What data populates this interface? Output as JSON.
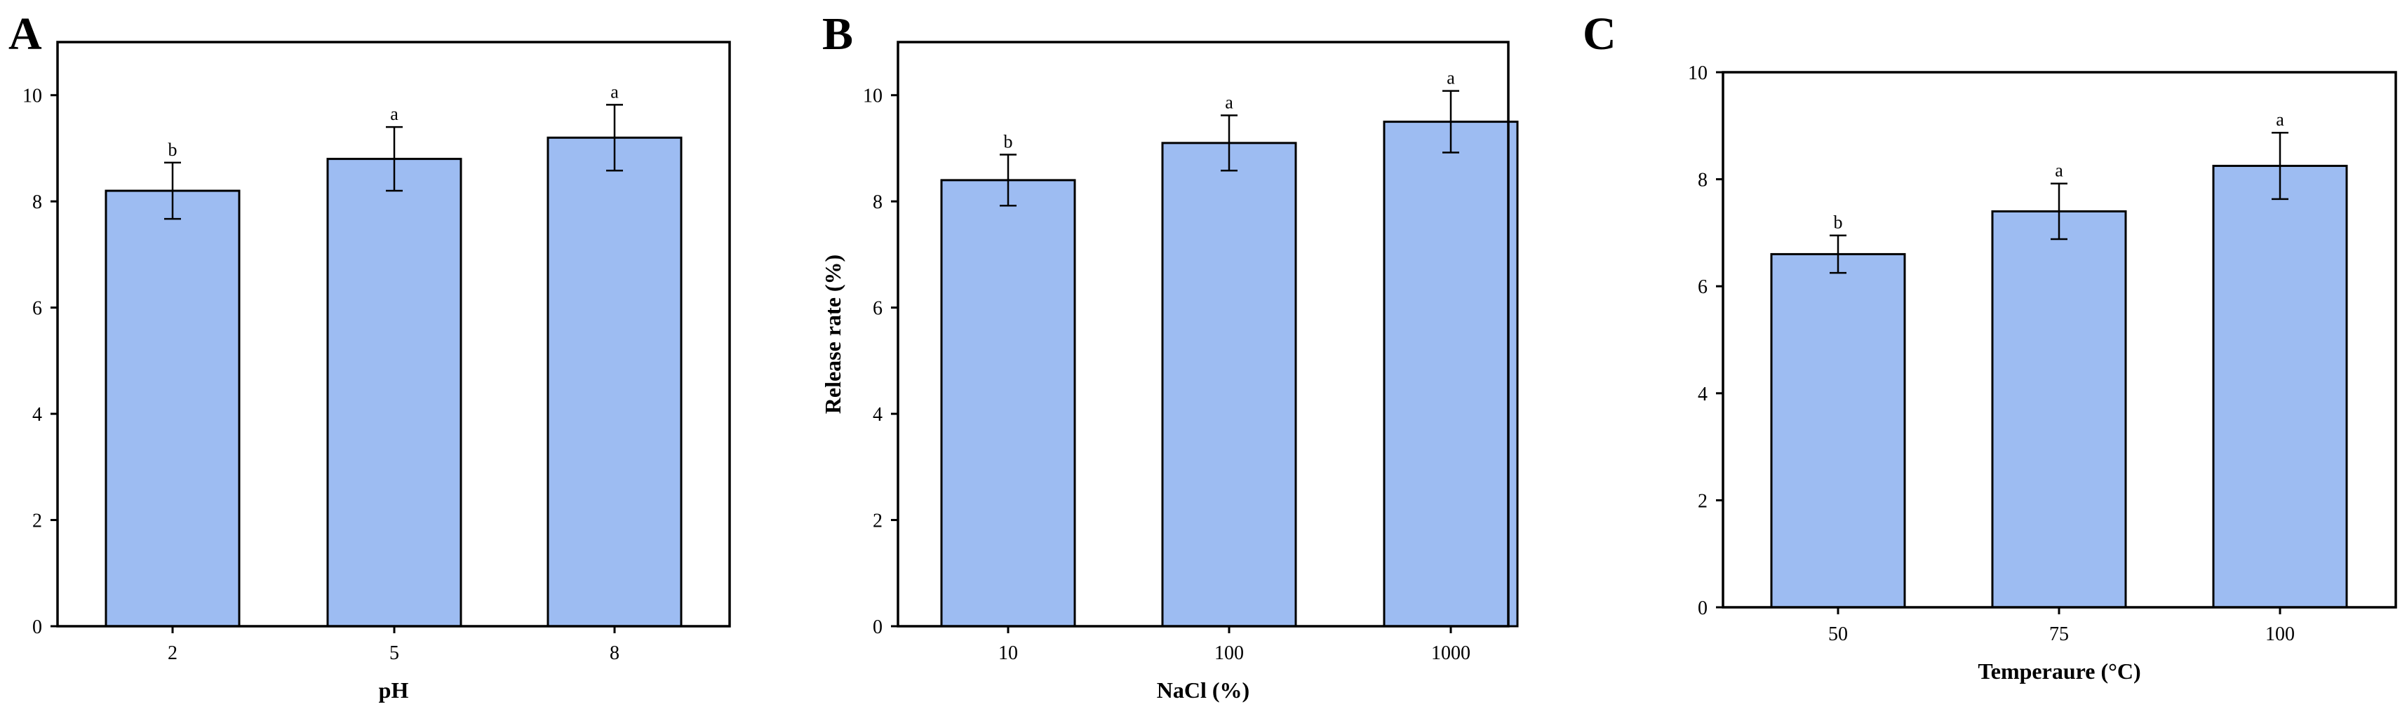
{
  "colors": {
    "bar_fill": "#9dbcf2",
    "bar_stroke": "#000000",
    "axis": "#000000",
    "background": "#ffffff"
  },
  "chart_data": [
    {
      "type": "bar",
      "panel_label": "A",
      "categories": [
        "2",
        "5",
        "8"
      ],
      "values": [
        8.2,
        8.8,
        9.2
      ],
      "errors": [
        0.53,
        0.6,
        0.62
      ],
      "significance": [
        "b",
        "a",
        "a"
      ],
      "xlabel": "pH",
      "ylabel": "",
      "ylim": [
        0,
        11
      ],
      "yticks": [
        0,
        2,
        4,
        6,
        8,
        10
      ],
      "grid": false
    },
    {
      "type": "bar",
      "panel_label": "B",
      "categories": [
        "10",
        "100",
        "1000"
      ],
      "values": [
        8.4,
        9.1,
        9.5
      ],
      "errors": [
        0.48,
        0.52,
        0.58
      ],
      "significance": [
        "b",
        "a",
        "a"
      ],
      "xlabel": "NaCl (%)",
      "ylabel": "Release rate (%)",
      "ylim": [
        0,
        11
      ],
      "yticks": [
        0,
        2,
        4,
        6,
        8,
        10
      ],
      "grid": false
    },
    {
      "type": "bar",
      "panel_label": "C",
      "categories": [
        "50",
        "75",
        "100"
      ],
      "values": [
        6.6,
        7.4,
        8.25
      ],
      "errors": [
        0.35,
        0.52,
        0.62
      ],
      "significance": [
        "b",
        "a",
        "a"
      ],
      "xlabel": "Temperaure (°C)",
      "ylabel": "",
      "ylim": [
        0,
        10
      ],
      "yticks": [
        0,
        2,
        4,
        6,
        8,
        10
      ],
      "grid": false
    }
  ]
}
